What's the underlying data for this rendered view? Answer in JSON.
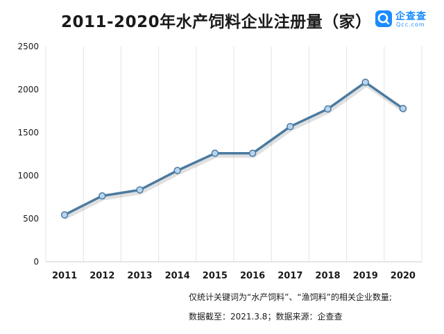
{
  "title": "2011-2020年水产饲料企业注册量（家）",
  "logo": {
    "name": "企查查",
    "sub": "Qcc.com",
    "color": "#1a8cff"
  },
  "chart_data": {
    "type": "line",
    "x": [
      "2011",
      "2012",
      "2013",
      "2014",
      "2015",
      "2016",
      "2017",
      "2018",
      "2019",
      "2020"
    ],
    "series": [
      {
        "values": [
          545,
          765,
          835,
          1060,
          1260,
          1260,
          1570,
          1775,
          2085,
          1780
        ]
      }
    ],
    "ylim": [
      0,
      2500
    ],
    "yticks": [
      "0",
      "500",
      "1000",
      "1500",
      "2000",
      "2500"
    ],
    "grid": "vertical",
    "line_color": "#4a7aa0",
    "marker_color": "#b8d4ef"
  },
  "footnote": {
    "line1": "仅统计关键词为“水产饲料”、“渔饲料”的相关企业数量;",
    "line2": "数据截至：2021.3.8；数据来源：企查查"
  }
}
